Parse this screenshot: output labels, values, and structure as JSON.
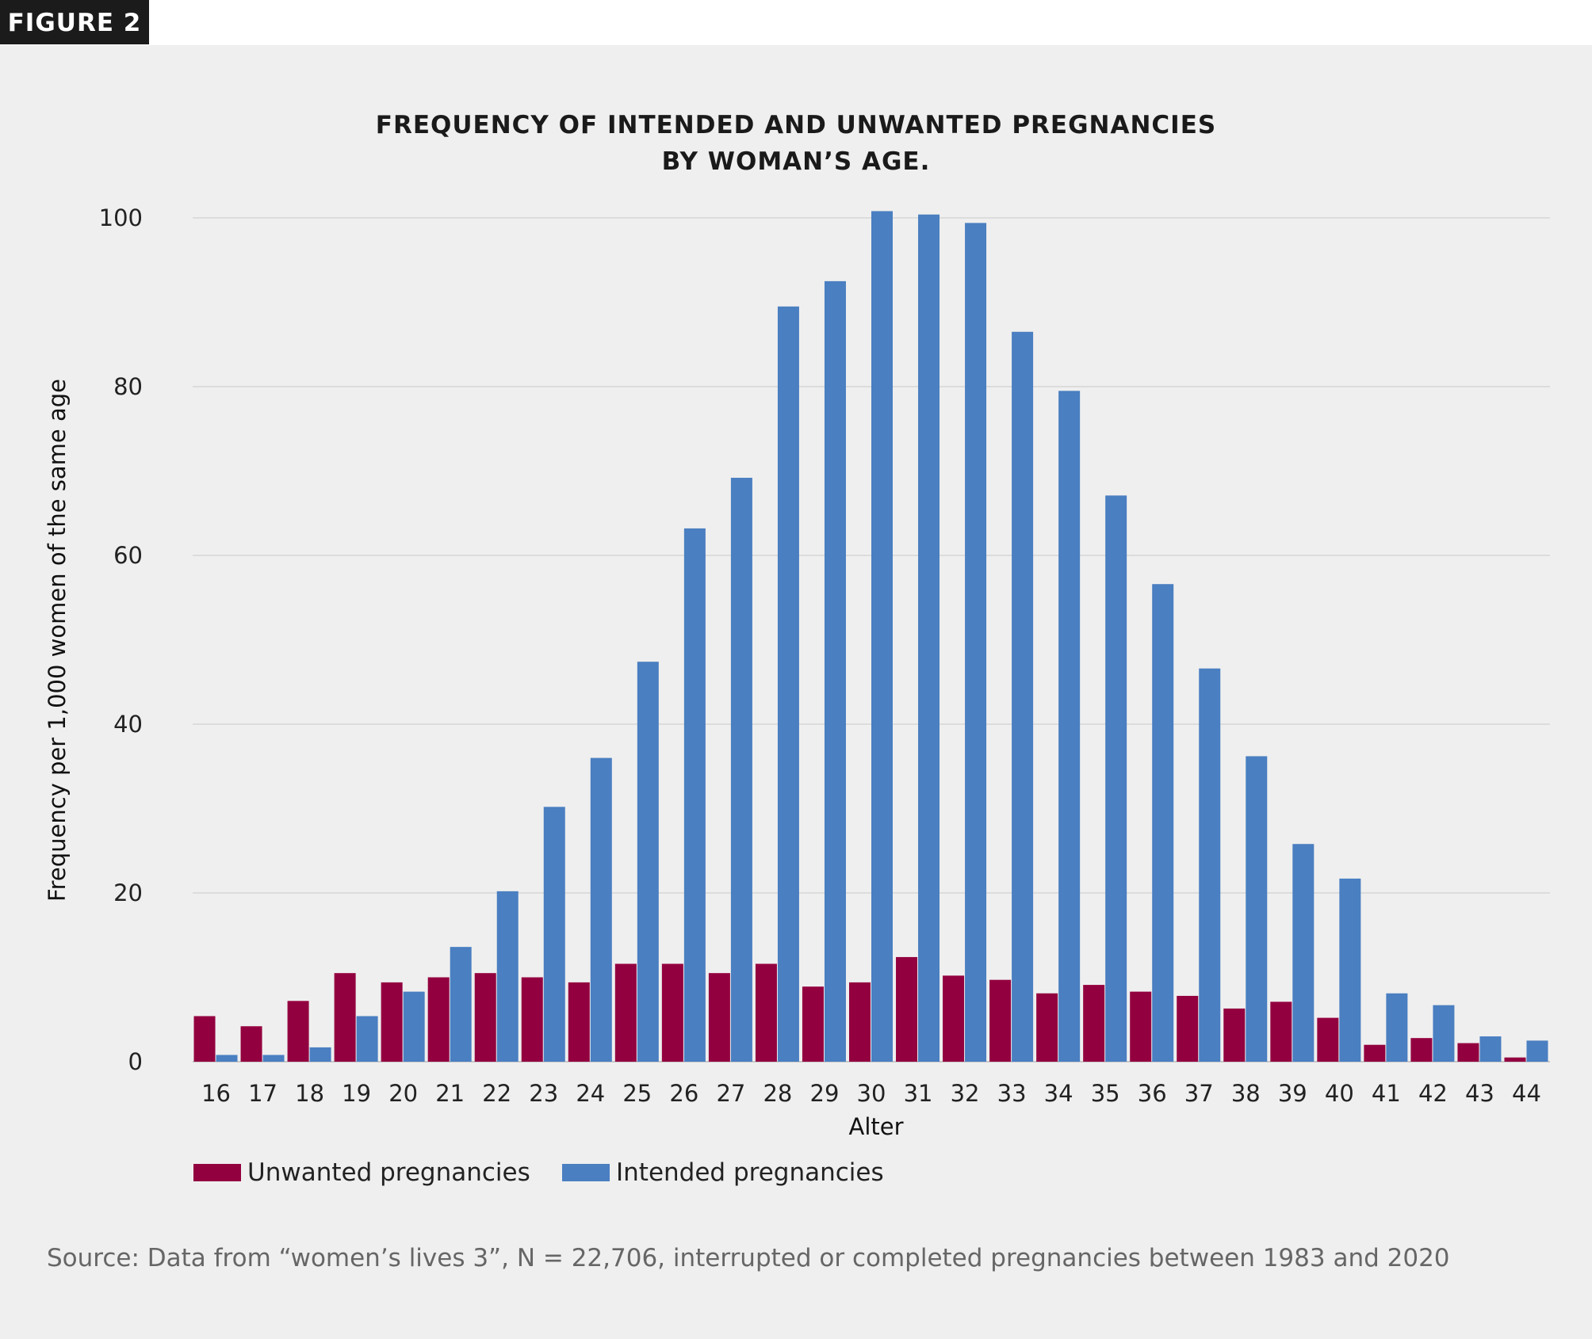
{
  "figure_label": "FIGURE 2",
  "chart_data": {
    "type": "bar",
    "title": [
      "FREQUENCY OF INTENDED AND UNWANTED PREGNANCIES",
      "BY WOMAN’S AGE."
    ],
    "xlabel": "Alter",
    "ylabel": "Frequency per 1,000 women of the same age",
    "ylim": [
      0,
      100
    ],
    "yticks": [
      0,
      20,
      40,
      60,
      80,
      100
    ],
    "grid": true,
    "legend_position": "bottom-left",
    "categories": [
      "16",
      "17",
      "18",
      "19",
      "20",
      "21",
      "22",
      "23",
      "24",
      "25",
      "26",
      "27",
      "28",
      "29",
      "30",
      "31",
      "32",
      "33",
      "34",
      "35",
      "36",
      "37",
      "38",
      "39",
      "40",
      "41",
      "42",
      "43",
      "44"
    ],
    "series": [
      {
        "name": "Unwanted pregnancies",
        "color": "#93003f",
        "values": [
          5.4,
          4.2,
          7.2,
          10.5,
          9.4,
          10.0,
          10.5,
          10.0,
          9.4,
          11.6,
          11.6,
          10.5,
          11.6,
          8.9,
          9.4,
          12.4,
          10.2,
          9.7,
          8.1,
          9.1,
          8.3,
          7.8,
          6.3,
          7.1,
          5.2,
          2.0,
          2.8,
          2.2,
          0.5
        ]
      },
      {
        "name": "Intended pregnancies",
        "color": "#4a7fc1",
        "values": [
          0.8,
          0.8,
          1.7,
          5.4,
          8.3,
          13.6,
          20.2,
          30.2,
          36.0,
          47.4,
          63.2,
          69.2,
          89.5,
          92.5,
          100.8,
          100.4,
          99.4,
          86.5,
          79.5,
          67.1,
          56.6,
          46.6,
          36.2,
          25.8,
          21.7,
          8.1,
          6.7,
          3.0,
          2.5
        ]
      }
    ]
  },
  "source": "Source: Data from “women’s lives 3”, N = 22,706, interrupted or completed pregnancies between 1983 and 2020"
}
